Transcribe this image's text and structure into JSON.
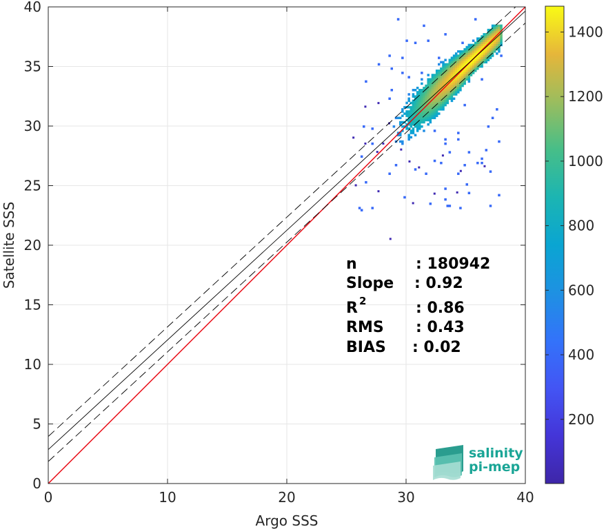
{
  "chart_data": {
    "type": "scatter",
    "subtype": "density-scatter",
    "xlabel": "Argo SSS",
    "ylabel": "Satellite SSS",
    "xlim": [
      0,
      40
    ],
    "ylim": [
      0,
      40
    ],
    "xticks": [
      0,
      10,
      20,
      30,
      40
    ],
    "yticks": [
      0,
      5,
      10,
      15,
      20,
      25,
      30,
      35,
      40
    ],
    "grid": true,
    "colorbar": {
      "colormap": "parula",
      "range": [
        1,
        1480
      ],
      "ticks": [
        200,
        400,
        600,
        800,
        1000,
        1200,
        1400
      ]
    },
    "lines": [
      {
        "role": "one-to-one",
        "color": "#e8000b",
        "style": "solid",
        "slope": 1.0,
        "intercept": 0.0
      },
      {
        "role": "regression-fit",
        "color": "#000000",
        "style": "solid",
        "slope": 0.92,
        "intercept": 2.85
      },
      {
        "role": "fit-upper-bound",
        "color": "#000000",
        "style": "dashed",
        "slope": 0.92,
        "intercept": 3.95
      },
      {
        "role": "fit-lower-bound",
        "color": "#000000",
        "style": "dashed",
        "slope": 0.92,
        "intercept": 1.85
      }
    ],
    "density_cloud": {
      "center": [
        35.5,
        35.3
      ],
      "core_max_count": 1480,
      "x_extent": [
        26.0,
        38.0
      ],
      "y_extent": [
        22.5,
        39.0
      ]
    },
    "outliers": [
      [
        28.6,
        20.5
      ],
      [
        30.5,
        23.5
      ],
      [
        27.6,
        24.5
      ],
      [
        32.3,
        24.3
      ],
      [
        34.2,
        24.4
      ],
      [
        25.7,
        25.0
      ],
      [
        26.5,
        28.5
      ],
      [
        27.5,
        27.8
      ],
      [
        28.0,
        28.5
      ],
      [
        29.5,
        28.0
      ],
      [
        30.2,
        27.0
      ],
      [
        31.0,
        26.5
      ],
      [
        33.0,
        27.5
      ],
      [
        34.5,
        26.2
      ],
      [
        25.5,
        29.0
      ],
      [
        28.5,
        30.2
      ],
      [
        36.5,
        26.6
      ],
      [
        26.5,
        31.6
      ],
      [
        27.6,
        31.9
      ]
    ],
    "stats": [
      {
        "label": "n",
        "value": ": 180942"
      },
      {
        "label": "Slope",
        "value": ": 0.92"
      },
      {
        "label": "R",
        "superscript": "2",
        "value": ": 0.86"
      },
      {
        "label": "RMS",
        "value": ": 0.43"
      },
      {
        "label": "BIAS",
        "value": ": 0.02"
      }
    ]
  },
  "logo": {
    "line1": "salinity",
    "line2": "pi-mep",
    "color": "#1aa596"
  }
}
